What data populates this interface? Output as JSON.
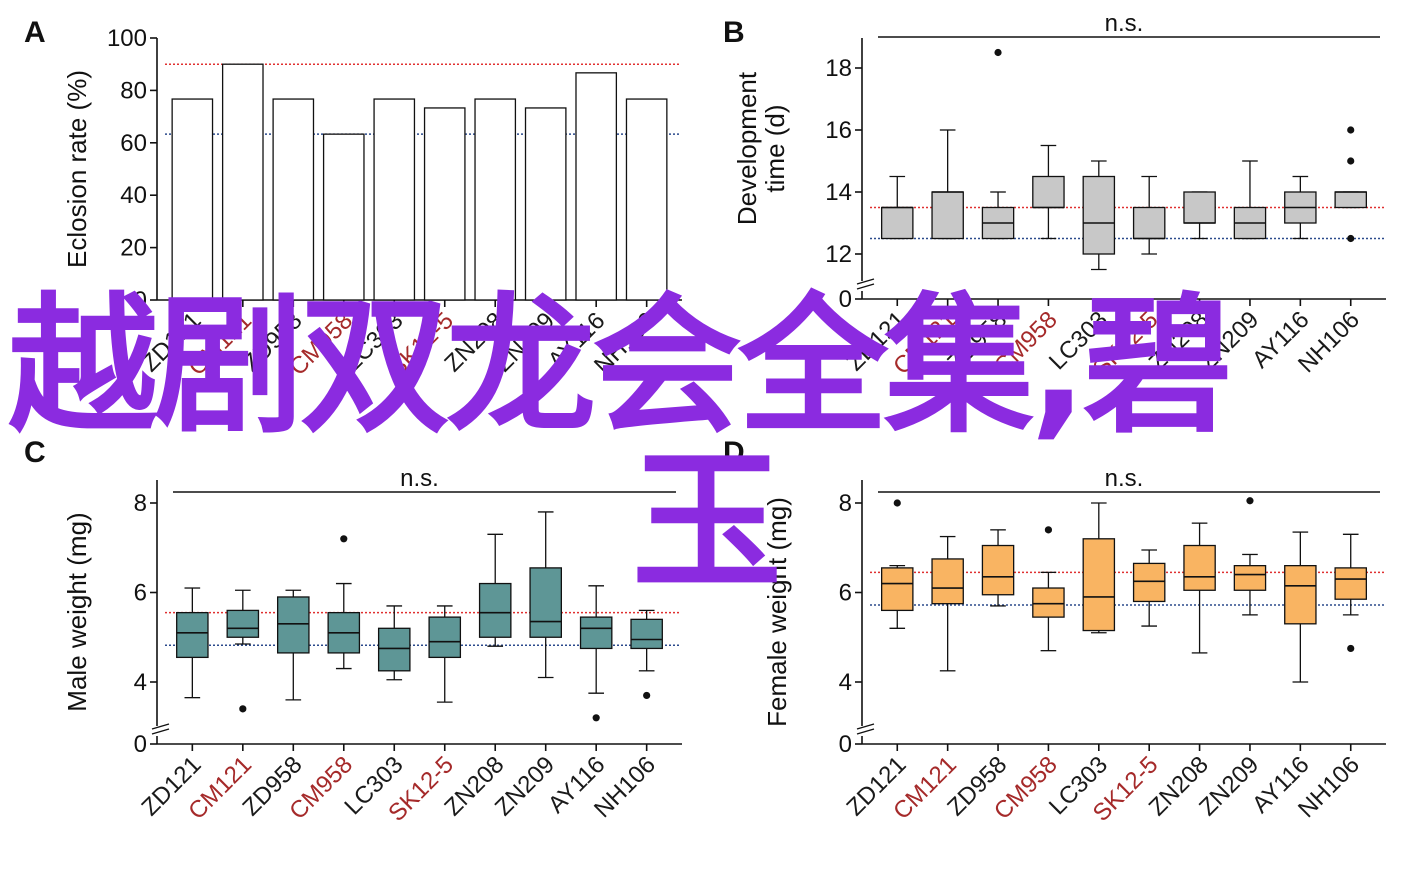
{
  "categories": [
    "ZD121",
    "CM121",
    "ZD958",
    "CM958",
    "LC303",
    "SK12-5",
    "ZN208",
    "ZN209",
    "AY116",
    "NH106"
  ],
  "highlight_categories": [
    "CM121",
    "CM958",
    "SK12-5"
  ],
  "colors": {
    "highlight_label": "#a52a2a",
    "normal_label": "#1a1a1a",
    "red_ref": "#e03030",
    "blue_ref": "#2b4a8c"
  },
  "overlay": {
    "line1": "越剧双龙会全集,碧",
    "line2": "玉"
  },
  "chart_data": [
    {
      "panel": "A",
      "type": "bar",
      "title": "",
      "xlabel": "",
      "ylabel": "Eclosion rate (%)",
      "ylim": [
        0,
        100
      ],
      "yticks": [
        0,
        20,
        40,
        60,
        80,
        100
      ],
      "values": [
        76.7,
        90,
        76.7,
        63.3,
        76.7,
        73.3,
        76.7,
        73.3,
        86.7,
        76.7
      ],
      "ref_lines": {
        "red": 90,
        "blue": 63.3
      },
      "bar_color": "#ffffff"
    },
    {
      "panel": "B",
      "type": "box",
      "ylabel_lines": [
        "Development",
        "time (d)"
      ],
      "ylim": [
        12,
        19
      ],
      "yticks": [
        12,
        14,
        16,
        18
      ],
      "axis_break": true,
      "break_label": "0",
      "significance": "n.s.",
      "ref_lines": {
        "red": 13.5,
        "blue": 12.5
      },
      "box_color": "#c8c8c8",
      "boxes": [
        {
          "wlo": 12.5,
          "q1": 12.5,
          "med": 13.5,
          "q3": 13.5,
          "whi": 14.5,
          "out": []
        },
        {
          "wlo": 12.5,
          "q1": 12.5,
          "med": 14,
          "q3": 14,
          "whi": 16,
          "out": []
        },
        {
          "wlo": 12.5,
          "q1": 12.5,
          "med": 13,
          "q3": 13.5,
          "whi": 14,
          "out": [
            18.5
          ]
        },
        {
          "wlo": 12.5,
          "q1": 13.5,
          "med": 13.5,
          "q3": 14.5,
          "whi": 15.5,
          "out": []
        },
        {
          "wlo": 11.5,
          "q1": 12,
          "med": 13,
          "q3": 14.5,
          "whi": 15,
          "out": []
        },
        {
          "wlo": 12,
          "q1": 12.5,
          "med": 12.5,
          "q3": 13.5,
          "whi": 14.5,
          "out": []
        },
        {
          "wlo": 12.5,
          "q1": 13,
          "med": 13,
          "q3": 14,
          "whi": 14,
          "out": []
        },
        {
          "wlo": 12.5,
          "q1": 12.5,
          "med": 13,
          "q3": 13.5,
          "whi": 15,
          "out": []
        },
        {
          "wlo": 12.5,
          "q1": 13,
          "med": 13.5,
          "q3": 14,
          "whi": 14.5,
          "out": []
        },
        {
          "wlo": 13.5,
          "q1": 13.5,
          "med": 14,
          "q3": 14,
          "whi": 14,
          "out": [
            16,
            15,
            12.5
          ]
        }
      ]
    },
    {
      "panel": "C",
      "type": "box",
      "ylabel_lines": [
        "Male weight (mg)"
      ],
      "ylim": [
        3.3,
        8.5
      ],
      "yticks": [
        4,
        6,
        8
      ],
      "axis_break": true,
      "break_label": "0",
      "significance": "n.s.",
      "ref_lines": {
        "red": 5.55,
        "blue": 4.82
      },
      "box_color": "#5e9696",
      "boxes": [
        {
          "wlo": 3.65,
          "q1": 4.55,
          "med": 5.1,
          "q3": 5.55,
          "whi": 6.1,
          "out": []
        },
        {
          "wlo": 4.85,
          "q1": 5.0,
          "med": 5.2,
          "q3": 5.6,
          "whi": 6.05,
          "out": [
            3.4
          ]
        },
        {
          "wlo": 3.6,
          "q1": 4.65,
          "med": 5.3,
          "q3": 5.9,
          "whi": 6.05,
          "out": []
        },
        {
          "wlo": 4.3,
          "q1": 4.65,
          "med": 5.1,
          "q3": 5.55,
          "whi": 6.2,
          "out": [
            7.2
          ]
        },
        {
          "wlo": 4.05,
          "q1": 4.25,
          "med": 4.75,
          "q3": 5.2,
          "whi": 5.7,
          "out": []
        },
        {
          "wlo": 3.55,
          "q1": 4.55,
          "med": 4.9,
          "q3": 5.45,
          "whi": 5.7,
          "out": []
        },
        {
          "wlo": 4.8,
          "q1": 5.0,
          "med": 5.55,
          "q3": 6.2,
          "whi": 7.3,
          "out": []
        },
        {
          "wlo": 4.1,
          "q1": 5.0,
          "med": 5.35,
          "q3": 6.55,
          "whi": 7.8,
          "out": []
        },
        {
          "wlo": 3.75,
          "q1": 4.75,
          "med": 5.2,
          "q3": 5.45,
          "whi": 6.15,
          "out": [
            3.2
          ]
        },
        {
          "wlo": 4.25,
          "q1": 4.75,
          "med": 4.95,
          "q3": 5.4,
          "whi": 5.6,
          "out": [
            3.7
          ]
        }
      ]
    },
    {
      "panel": "D",
      "type": "box",
      "ylabel_lines": [
        "Female weight (mg)"
      ],
      "ylim": [
        3.3,
        8.5
      ],
      "yticks": [
        4,
        6,
        8
      ],
      "axis_break": true,
      "break_label": "0",
      "significance": "n.s.",
      "ref_lines": {
        "red": 6.45,
        "blue": 5.72
      },
      "box_color": "#f9b462",
      "boxes": [
        {
          "wlo": 5.2,
          "q1": 5.6,
          "med": 6.2,
          "q3": 6.55,
          "whi": 6.6,
          "out": [
            8.0
          ]
        },
        {
          "wlo": 4.25,
          "q1": 5.75,
          "med": 6.1,
          "q3": 6.75,
          "whi": 7.25,
          "out": []
        },
        {
          "wlo": 5.7,
          "q1": 5.95,
          "med": 6.35,
          "q3": 7.05,
          "whi": 7.4,
          "out": []
        },
        {
          "wlo": 4.7,
          "q1": 5.45,
          "med": 5.75,
          "q3": 6.1,
          "whi": 6.45,
          "out": [
            7.4
          ]
        },
        {
          "wlo": 5.1,
          "q1": 5.15,
          "med": 5.9,
          "q3": 7.2,
          "whi": 8.0,
          "out": []
        },
        {
          "wlo": 5.25,
          "q1": 5.8,
          "med": 6.25,
          "q3": 6.65,
          "whi": 6.95,
          "out": []
        },
        {
          "wlo": 4.65,
          "q1": 6.05,
          "med": 6.35,
          "q3": 7.05,
          "whi": 7.55,
          "out": []
        },
        {
          "wlo": 5.5,
          "q1": 6.05,
          "med": 6.4,
          "q3": 6.6,
          "whi": 6.85,
          "out": [
            8.05
          ]
        },
        {
          "wlo": 4.0,
          "q1": 5.3,
          "med": 6.15,
          "q3": 6.6,
          "whi": 7.35,
          "out": []
        },
        {
          "wlo": 5.5,
          "q1": 5.85,
          "med": 6.3,
          "q3": 6.55,
          "whi": 7.3,
          "out": [
            4.75
          ]
        }
      ]
    }
  ]
}
